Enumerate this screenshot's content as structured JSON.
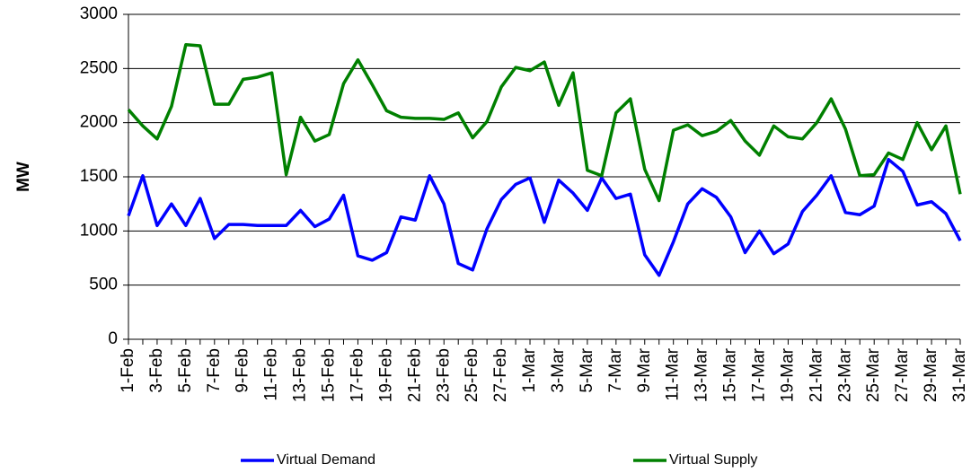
{
  "chart_data": {
    "type": "line",
    "categories": [
      "1-Feb",
      null,
      "3-Feb",
      null,
      "5-Feb",
      null,
      "7-Feb",
      null,
      "9-Feb",
      null,
      "11-Feb",
      null,
      "13-Feb",
      null,
      "15-Feb",
      null,
      "17-Feb",
      null,
      "19-Feb",
      null,
      "21-Feb",
      null,
      "23-Feb",
      null,
      "25-Feb",
      null,
      "27-Feb",
      null,
      "1-Mar",
      null,
      "3-Mar",
      null,
      "5-Mar",
      null,
      "7-Mar",
      null,
      "9-Mar",
      null,
      "11-Mar",
      null,
      "13-Mar",
      null,
      "15-Mar",
      null,
      "17-Mar",
      null,
      "19-Mar",
      null,
      "21-Mar",
      null,
      "23-Mar",
      null,
      "25-Mar",
      null,
      "27-Mar",
      null,
      "29-Mar",
      null,
      "31-Mar"
    ],
    "series": [
      {
        "name": "Virtual Demand",
        "color": "#0000ff",
        "values": [
          1140,
          1510,
          1050,
          1250,
          1050,
          1300,
          930,
          1060,
          1060,
          1050,
          1050,
          1050,
          1190,
          1040,
          1110,
          1330,
          770,
          730,
          800,
          1130,
          1100,
          1510,
          1250,
          700,
          640,
          1020,
          1290,
          1430,
          1490,
          1080,
          1470,
          1350,
          1190,
          1490,
          1300,
          1340,
          780,
          590,
          900,
          1250,
          1390,
          1310,
          1130,
          800,
          1000,
          790,
          880,
          1180,
          1330,
          1510,
          1170,
          1150,
          1230,
          1660,
          1550,
          1240,
          1270,
          1160,
          910
        ]
      },
      {
        "name": "Virtual Supply",
        "color": "#008000",
        "values": [
          2120,
          1970,
          1850,
          2150,
          2720,
          2710,
          2170,
          2170,
          2400,
          2420,
          2460,
          1520,
          2050,
          1830,
          1890,
          2360,
          2580,
          2350,
          2110,
          2050,
          2040,
          2040,
          2030,
          2090,
          1860,
          2010,
          2330,
          2510,
          2480,
          2560,
          2160,
          2460,
          1560,
          1510,
          2090,
          2220,
          1570,
          1280,
          1930,
          1980,
          1880,
          1920,
          2020,
          1830,
          1700,
          1970,
          1870,
          1850,
          2000,
          2220,
          1940,
          1510,
          1520,
          1720,
          1660,
          2000,
          1750,
          1970,
          1340
        ]
      }
    ],
    "y_label": "MW",
    "ylim": [
      0,
      3000
    ],
    "yticks": [
      0,
      500,
      1000,
      1500,
      2000,
      2500,
      3000
    ],
    "grid": true
  }
}
